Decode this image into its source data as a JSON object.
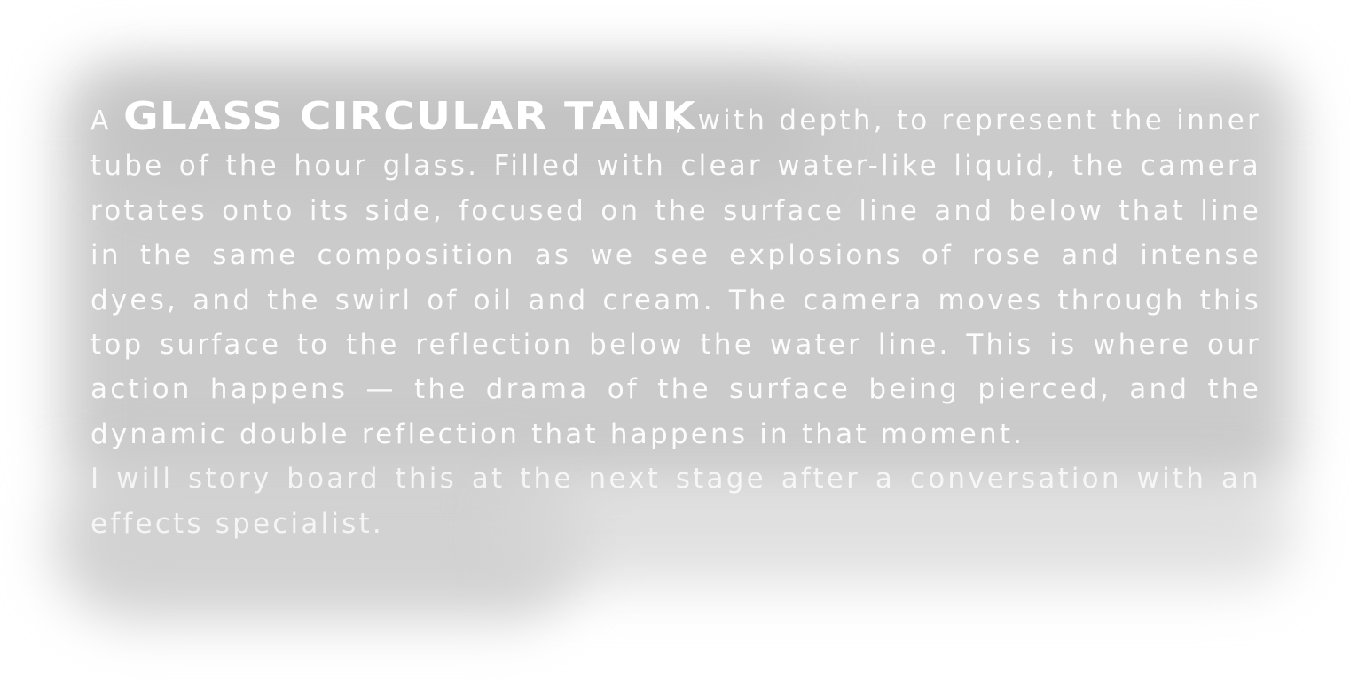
{
  "paragraph_1": {
    "lead_word": "A",
    "headline": "GLASS CIRCULAR TANK",
    "body": ", with depth, to represent the inner tube of the hour glass. Filled with clear water-like liquid, the camera rotates onto its side, focused on the surface line and below that line in the same composition as we see explosions of rose and intense dyes, and the swirl of oil and cream. The camera moves through this top surface to the reflection below the water line. This is where our action happens — the drama of the surface being pierced, and the dynamic double reflection that happens in that moment."
  },
  "paragraph_2": {
    "text": "I will story board this at the next stage after a conversation with an effects specialist."
  },
  "colors": {
    "text": "#ffffff",
    "smudge": "#c8c8c8",
    "background": "#ffffff"
  }
}
